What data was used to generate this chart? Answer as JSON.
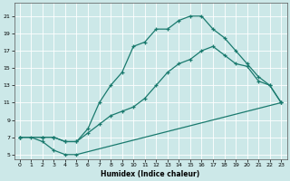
{
  "xlabel": "Humidex (Indice chaleur)",
  "xlim": [
    -0.5,
    23.5
  ],
  "ylim": [
    4.5,
    22.5
  ],
  "xticks": [
    0,
    1,
    2,
    3,
    4,
    5,
    6,
    7,
    8,
    9,
    10,
    11,
    12,
    13,
    14,
    15,
    16,
    17,
    18,
    19,
    20,
    21,
    22,
    23
  ],
  "yticks": [
    5,
    7,
    9,
    11,
    13,
    15,
    17,
    19,
    21
  ],
  "bg_color": "#cce8e8",
  "grid_color": "#ffffff",
  "line_color": "#1a7a6e",
  "line1_x": [
    0,
    1,
    2,
    3,
    4,
    5,
    23
  ],
  "line1_y": [
    7,
    7,
    6.5,
    5.5,
    5.0,
    5.0,
    11.0
  ],
  "line2_x": [
    0,
    2,
    3,
    4,
    5,
    6,
    7,
    8,
    9,
    10,
    11,
    12,
    13,
    14,
    15,
    16,
    17,
    18,
    19,
    20,
    21,
    22,
    23
  ],
  "line2_y": [
    7,
    7,
    7,
    6.5,
    6.5,
    8.0,
    11.0,
    13.0,
    14.5,
    17.5,
    18.0,
    19.5,
    19.5,
    20.5,
    21.0,
    21.0,
    19.5,
    18.5,
    17.0,
    15.5,
    14.0,
    13.0,
    11.0
  ],
  "line3_x": [
    0,
    2,
    3,
    4,
    5,
    6,
    7,
    8,
    9,
    10,
    11,
    12,
    13,
    14,
    15,
    16,
    17,
    18,
    19,
    20,
    21,
    22,
    23
  ],
  "line3_y": [
    7,
    7,
    7,
    6.5,
    6.5,
    7.5,
    8.5,
    9.5,
    10.0,
    10.5,
    11.5,
    13.0,
    14.5,
    15.5,
    16.0,
    17.0,
    17.5,
    16.5,
    15.5,
    15.2,
    13.5,
    13.0,
    11.0
  ]
}
